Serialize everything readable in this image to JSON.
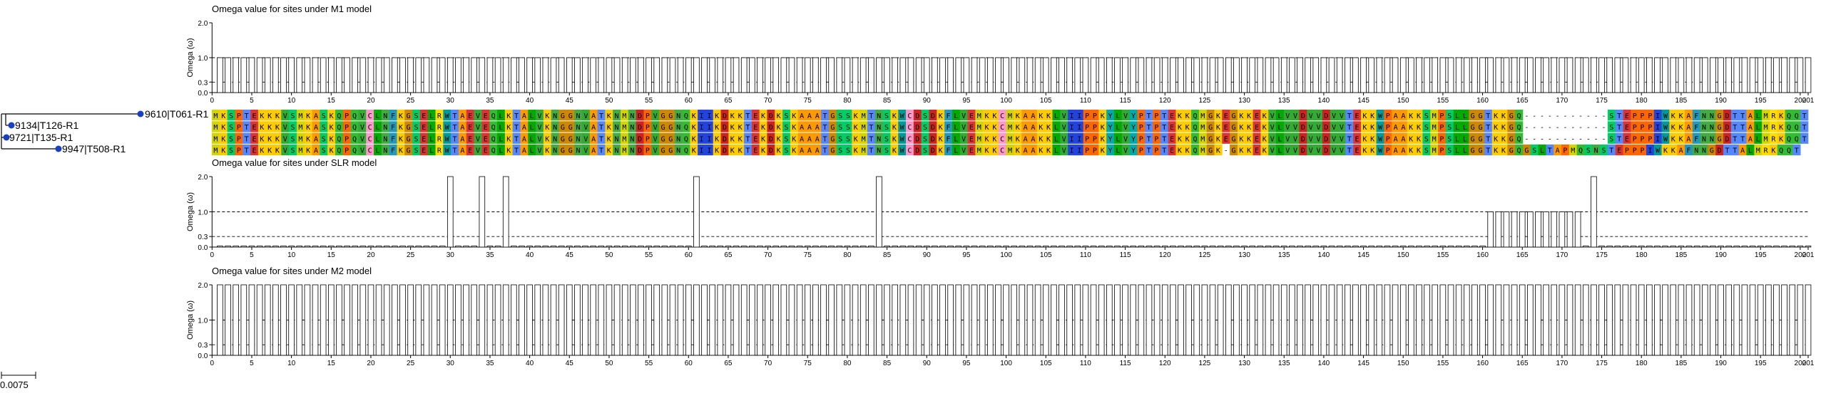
{
  "tree": {
    "taxa": [
      "9610|T061-R1",
      "9134|T126-R1",
      "9721|T135-R1",
      "9947|T508-R1"
    ],
    "scale_bar_label": "0.0075"
  },
  "alignment": {
    "sequences": [
      "MKSPTEKKKVSMKASKQPQVCLNFKGSELRWTAEVEQLKTALVKNGGNVATKNMNDPVGGNQKIIKDKKTEKDKSKAAATGSSKMTNSKWCDSDKFLVEMKKCMKAAKKLVIIPPKYLVYPTPTEKKQMGKEGKKEKVLVVDVVDVVTEKKWPAAKKSMPSLLGGTKKGQ-----------STEPPPIWKKAFNNGDTTALMRKQQT",
      "MKSPTEKKKVSMKASKQPQVCLNFKGSELRWTAEVEQLKTALVKNGGNVATKNMNDPVGGNQKIIKDKKTEKDKSKAAATGSSKMTNSKWCDSDKFLVEMKKCMKAAKKLVIIPPKYLVYPTPTEKKQMGKEGKKEKVLVVDVVDVVTEKKWPAAKKSMPSLLGGTKKGQ-----------STEPPPIWKKAFNNGDTTALMRKQQT",
      "MKSPTEKKKVSMKASKQPQVCLNFKGSELRWTAEVEQLKTALVKNGGNVATKNMNDPVGGNQKIIKDKKTEKDKSKAAATGSSKMTNSKWCDSDKFLVEMKKCMKAAKKLVIIPPKYLVYPTPTEKKQMGKEGKKEKVLVVDVVDVVTEKKWPAAKKSMPSLLGGTKKGQ-----------STEPPPIWKKAFNNGDTTALMRKQQT",
      "MKSPTEKKKVSMKASKQPQVCLNFKGSELRWTAEVEQLKTALVKNGGNVATKNMNDPVGGNQKIIKDKKTEKDKSKAAATGSSKMTNSKWCDSDKFLVEMKKCMKAAKKLVIIPPKYLVYPTPTEKKQMGK-GKKEKVLVVDVVDVVTEKKWPAAKKSMPSLLGGTKKGQGSLTAPMQSNSTEPPPIWKKAFNNGDTTALMRKQQT"
    ],
    "colors": {
      "A": "#ff9900",
      "R": "#ffdd00",
      "N": "#44aa44",
      "D": "#cc2222",
      "C": "#ff99cc",
      "Q": "#33bb33",
      "E": "#dd3333",
      "G": "#cc8800",
      "H": "#3366ff",
      "I": "#2244dd",
      "L": "#00aa00",
      "K": "#ffcc00",
      "M": "#d4d400",
      "F": "#2299bb",
      "P": "#ff6600",
      "S": "#00cc66",
      "T": "#5588ff",
      "W": "#009999",
      "Y": "#00aaaa",
      "V": "#33aa33"
    }
  },
  "chart_data": [
    {
      "type": "bar",
      "title": "Omega value for sites under M1 model",
      "ylabel": "Omega (ω)",
      "ylim": [
        0,
        2.0
      ],
      "yticks": [
        0.0,
        0.3,
        1.0,
        2.0
      ],
      "reference_lines": [
        0.3,
        1.0
      ],
      "xlim": [
        0,
        201
      ],
      "xticks": [
        0,
        5,
        10,
        15,
        20,
        25,
        30,
        35,
        40,
        45,
        50,
        55,
        60,
        65,
        70,
        75,
        80,
        85,
        90,
        95,
        100,
        105,
        110,
        115,
        120,
        125,
        130,
        135,
        140,
        145,
        150,
        155,
        160,
        165,
        170,
        175,
        180,
        185,
        190,
        195,
        200,
        201
      ],
      "sites": 201,
      "values": [
        {
          "from": 1,
          "to": 201,
          "omega": 1.0
        }
      ]
    },
    {
      "type": "bar",
      "title": "Omega value for sites under SLR model",
      "ylabel": "Omega (ω)",
      "ylim": [
        0,
        2.0
      ],
      "yticks": [
        0.0,
        0.3,
        1.0,
        2.0
      ],
      "reference_lines": [
        0.3,
        1.0
      ],
      "xlim": [
        0,
        201
      ],
      "xticks": [
        0,
        5,
        10,
        15,
        20,
        25,
        30,
        35,
        40,
        45,
        50,
        55,
        60,
        65,
        70,
        75,
        80,
        85,
        90,
        95,
        100,
        105,
        110,
        115,
        120,
        125,
        130,
        135,
        140,
        145,
        150,
        155,
        160,
        165,
        170,
        175,
        180,
        185,
        190,
        195,
        200,
        201
      ],
      "sites": 201,
      "values": [
        {
          "from": 1,
          "to": 201,
          "omega": 0.03
        },
        {
          "from": 30,
          "to": 30,
          "omega": 2.0
        },
        {
          "from": 34,
          "to": 34,
          "omega": 2.0
        },
        {
          "from": 37,
          "to": 37,
          "omega": 2.0
        },
        {
          "from": 61,
          "to": 61,
          "omega": 2.0
        },
        {
          "from": 84,
          "to": 84,
          "omega": 2.0
        },
        {
          "from": 161,
          "to": 172,
          "omega": 1.0
        },
        {
          "from": 174,
          "to": 174,
          "omega": 2.0
        }
      ]
    },
    {
      "type": "bar",
      "title": "Omega value for sites under M2 model",
      "ylabel": "Omega (ω)",
      "ylim": [
        0,
        2.0
      ],
      "yticks": [
        0.0,
        0.3,
        1.0,
        2.0
      ],
      "reference_lines": [
        0.3,
        1.0
      ],
      "xlim": [
        0,
        201
      ],
      "xticks": [
        0,
        5,
        10,
        15,
        20,
        25,
        30,
        35,
        40,
        45,
        50,
        55,
        60,
        65,
        70,
        75,
        80,
        85,
        90,
        95,
        100,
        105,
        110,
        115,
        120,
        125,
        130,
        135,
        140,
        145,
        150,
        155,
        160,
        165,
        170,
        175,
        180,
        185,
        190,
        195,
        200,
        201
      ],
      "sites": 201,
      "values": [
        {
          "from": 1,
          "to": 201,
          "omega": 2.0
        }
      ]
    }
  ]
}
